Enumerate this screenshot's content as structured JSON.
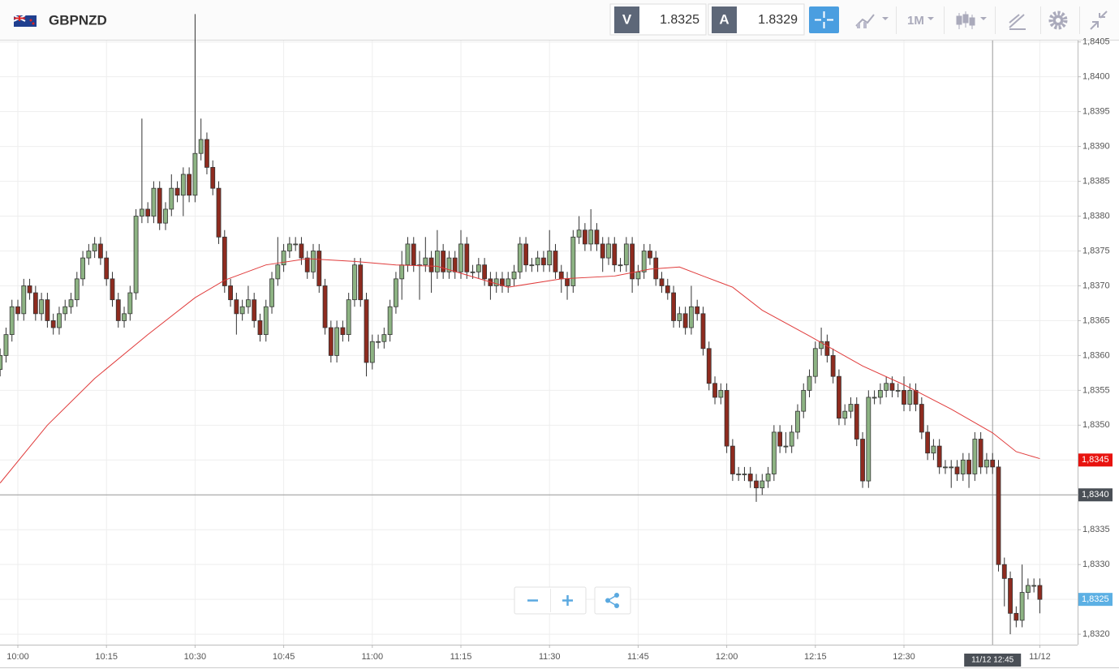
{
  "toolbar": {
    "symbol": "GBPNZD",
    "sell_label": "V",
    "sell_price": 1.8325,
    "buy_label": "A",
    "buy_price": 1.8329,
    "timeframe": "1M"
  },
  "chart_data": {
    "type": "candlestick",
    "x": [
      "09:57",
      "09:58",
      "09:59",
      "10:00",
      "10:01",
      "10:02",
      "10:03",
      "10:04",
      "10:05",
      "10:06",
      "10:07",
      "10:08",
      "10:09",
      "10:10",
      "10:11",
      "10:12",
      "10:13",
      "10:14",
      "10:15",
      "10:16",
      "10:17",
      "10:18",
      "10:19",
      "10:20",
      "10:21",
      "10:22",
      "10:23",
      "10:24",
      "10:25",
      "10:26",
      "10:27",
      "10:28",
      "10:29",
      "10:30",
      "10:31",
      "10:32",
      "10:33",
      "10:34",
      "10:35",
      "10:36",
      "10:37",
      "10:38",
      "10:39",
      "10:40",
      "10:41",
      "10:42",
      "10:43",
      "10:44",
      "10:45",
      "10:46",
      "10:47",
      "10:48",
      "10:49",
      "10:50",
      "10:51",
      "10:52",
      "10:53",
      "10:54",
      "10:55",
      "10:56",
      "10:57",
      "10:58",
      "10:59",
      "11:00",
      "11:01",
      "11:02",
      "11:03",
      "11:04",
      "11:05",
      "11:06",
      "11:07",
      "11:08",
      "11:09",
      "11:10",
      "11:11",
      "11:12",
      "11:13",
      "11:14",
      "11:15",
      "11:16",
      "11:17",
      "11:18",
      "11:19",
      "11:20",
      "11:21",
      "11:22",
      "11:23",
      "11:24",
      "11:25",
      "11:26",
      "11:27",
      "11:28",
      "11:29",
      "11:30",
      "11:31",
      "11:32",
      "11:33",
      "11:34",
      "11:35",
      "11:36",
      "11:37",
      "11:38",
      "11:39",
      "11:40",
      "11:41",
      "11:42",
      "11:43",
      "11:44",
      "11:45",
      "11:46",
      "11:47",
      "11:48",
      "11:49",
      "11:50",
      "11:51",
      "11:52",
      "11:53",
      "11:54",
      "11:55",
      "11:56",
      "11:57",
      "11:58",
      "11:59",
      "12:00",
      "12:01",
      "12:02",
      "12:03",
      "12:04",
      "12:05",
      "12:06",
      "12:07",
      "12:08",
      "12:09",
      "12:10",
      "12:11",
      "12:12",
      "12:13",
      "12:14",
      "12:15",
      "12:16",
      "12:17",
      "12:18",
      "12:19",
      "12:20",
      "12:21",
      "12:22",
      "12:23",
      "12:24",
      "12:25",
      "12:26",
      "12:27",
      "12:28",
      "12:29",
      "12:30",
      "12:31",
      "12:32",
      "12:33",
      "12:34",
      "12:35",
      "12:36",
      "12:37",
      "12:38",
      "12:39",
      "12:40",
      "12:41",
      "12:42",
      "12:43",
      "12:44",
      "12:45",
      "12:46",
      "12:47",
      "12:48",
      "12:49",
      "12:50",
      "12:51",
      "12:52",
      "12:53"
    ],
    "open": [
      1.8358,
      1.836,
      1.8363,
      1.8367,
      1.8366,
      1.837,
      1.8369,
      1.8366,
      1.8368,
      1.8365,
      1.8364,
      1.8366,
      1.8367,
      1.8368,
      1.8371,
      1.8374,
      1.8375,
      1.8376,
      1.8374,
      1.8371,
      1.8368,
      1.8365,
      1.8366,
      1.8369,
      1.838,
      1.8381,
      1.838,
      1.8384,
      1.8379,
      1.8381,
      1.8384,
      1.8383,
      1.8386,
      1.8383,
      1.8389,
      1.8391,
      1.8387,
      1.8384,
      1.8377,
      1.837,
      1.8368,
      1.8366,
      1.8367,
      1.8368,
      1.8365,
      1.8363,
      1.8367,
      1.8371,
      1.8373,
      1.8375,
      1.8376,
      1.8376,
      1.8374,
      1.8372,
      1.8375,
      1.837,
      1.8364,
      1.836,
      1.8364,
      1.8363,
      1.8368,
      1.8373,
      1.8368,
      1.8359,
      1.8362,
      1.8362,
      1.8363,
      1.8367,
      1.8371,
      1.8373,
      1.8376,
      1.8373,
      1.8373,
      1.8374,
      1.8372,
      1.8375,
      1.8372,
      1.8374,
      1.8372,
      1.8376,
      1.8372,
      1.8372,
      1.8373,
      1.8371,
      1.837,
      1.8371,
      1.837,
      1.8371,
      1.8372,
      1.8376,
      1.8373,
      1.8373,
      1.8374,
      1.8373,
      1.8375,
      1.8372,
      1.8371,
      1.837,
      1.8377,
      1.8378,
      1.8376,
      1.8378,
      1.8376,
      1.8374,
      1.8376,
      1.8373,
      1.8373,
      1.8376,
      1.8371,
      1.8372,
      1.8375,
      1.8374,
      1.8371,
      1.837,
      1.8369,
      1.8365,
      1.8366,
      1.8364,
      1.8367,
      1.8366,
      1.8361,
      1.8356,
      1.8354,
      1.8355,
      1.8347,
      1.8343,
      1.8343,
      1.8343,
      1.8342,
      1.8341,
      1.8342,
      1.8343,
      1.8349,
      1.8347,
      1.8347,
      1.8349,
      1.8352,
      1.8355,
      1.8357,
      1.8361,
      1.8362,
      1.836,
      1.8357,
      1.8351,
      1.8352,
      1.8353,
      1.8348,
      1.8342,
      1.8354,
      1.8354,
      1.8355,
      1.8356,
      1.8355,
      1.8355,
      1.8353,
      1.8355,
      1.8353,
      1.8349,
      1.8346,
      1.8347,
      1.8344,
      1.8344,
      1.8344,
      1.8343,
      1.8345,
      1.8343,
      1.8348,
      1.8344,
      1.8345,
      1.8344,
      1.833,
      1.8328,
      1.8323,
      1.8322,
      1.8326,
      1.8327,
      1.8327
    ],
    "high": [
      1.8361,
      1.8364,
      1.8368,
      1.8368,
      1.8371,
      1.8371,
      1.837,
      1.8369,
      1.8369,
      1.8366,
      1.8367,
      1.8368,
      1.8369,
      1.8372,
      1.8375,
      1.8376,
      1.8377,
      1.8377,
      1.8375,
      1.8372,
      1.8369,
      1.8367,
      1.837,
      1.8381,
      1.8394,
      1.8382,
      1.8385,
      1.8385,
      1.8382,
      1.8386,
      1.8385,
      1.8387,
      1.8387,
      1.8409,
      1.8394,
      1.8392,
      1.8388,
      1.8385,
      1.8378,
      1.8371,
      1.8369,
      1.8368,
      1.837,
      1.8369,
      1.8366,
      1.8368,
      1.8372,
      1.8377,
      1.8376,
      1.8377,
      1.8377,
      1.8377,
      1.8375,
      1.8376,
      1.8376,
      1.8371,
      1.8365,
      1.8365,
      1.8365,
      1.8369,
      1.8374,
      1.8374,
      1.8369,
      1.8363,
      1.8363,
      1.8364,
      1.8368,
      1.8372,
      1.8375,
      1.8377,
      1.8377,
      1.8375,
      1.8377,
      1.8375,
      1.8378,
      1.8376,
      1.8375,
      1.8375,
      1.8378,
      1.8377,
      1.8373,
      1.8374,
      1.8374,
      1.8372,
      1.8372,
      1.8372,
      1.8372,
      1.8373,
      1.8377,
      1.8377,
      1.8374,
      1.8375,
      1.8375,
      1.8378,
      1.8376,
      1.8373,
      1.8372,
      1.8378,
      1.838,
      1.8379,
      1.8381,
      1.8379,
      1.8377,
      1.8377,
      1.8377,
      1.8374,
      1.8377,
      1.8377,
      1.8373,
      1.8376,
      1.8376,
      1.8375,
      1.8372,
      1.8371,
      1.837,
      1.8367,
      1.8367,
      1.837,
      1.8368,
      1.8367,
      1.8362,
      1.8357,
      1.8356,
      1.8356,
      1.8348,
      1.8344,
      1.8344,
      1.8344,
      1.8343,
      1.8343,
      1.8344,
      1.835,
      1.835,
      1.8349,
      1.835,
      1.8353,
      1.8356,
      1.8358,
      1.8362,
      1.8364,
      1.8363,
      1.8361,
      1.8358,
      1.8353,
      1.8354,
      1.8354,
      1.8349,
      1.8355,
      1.8355,
      1.8356,
      1.8357,
      1.8357,
      1.8356,
      1.8357,
      1.8356,
      1.8356,
      1.8354,
      1.835,
      1.8348,
      1.8348,
      1.8345,
      1.8345,
      1.8345,
      1.8346,
      1.8346,
      1.8349,
      1.8349,
      1.8346,
      1.8346,
      1.8345,
      1.8331,
      1.8329,
      1.8324,
      1.833,
      1.8328,
      1.8328,
      1.8328
    ],
    "low": [
      1.8357,
      1.8359,
      1.8362,
      1.8365,
      1.8365,
      1.8368,
      1.8365,
      1.8365,
      1.8364,
      1.8363,
      1.8363,
      1.8365,
      1.8366,
      1.8367,
      1.837,
      1.8373,
      1.8374,
      1.8373,
      1.837,
      1.8367,
      1.8364,
      1.8364,
      1.8365,
      1.8368,
      1.8379,
      1.8379,
      1.8379,
      1.8378,
      1.8378,
      1.838,
      1.8382,
      1.838,
      1.8382,
      1.8382,
      1.8388,
      1.8386,
      1.8383,
      1.8376,
      1.8369,
      1.8367,
      1.8363,
      1.8365,
      1.8366,
      1.8364,
      1.8362,
      1.8362,
      1.8366,
      1.837,
      1.8372,
      1.8374,
      1.8375,
      1.8373,
      1.8371,
      1.8371,
      1.8369,
      1.8363,
      1.8359,
      1.8359,
      1.8362,
      1.8362,
      1.8367,
      1.8367,
      1.8357,
      1.8358,
      1.8361,
      1.8361,
      1.8362,
      1.8366,
      1.8368,
      1.8372,
      1.8372,
      1.8368,
      1.8372,
      1.8369,
      1.8371,
      1.8371,
      1.8371,
      1.8371,
      1.8371,
      1.8371,
      1.8371,
      1.8371,
      1.837,
      1.8368,
      1.8369,
      1.8369,
      1.8369,
      1.837,
      1.8371,
      1.8372,
      1.8372,
      1.8372,
      1.8372,
      1.8372,
      1.8371,
      1.8369,
      1.8368,
      1.8369,
      1.8376,
      1.8375,
      1.8375,
      1.8375,
      1.8372,
      1.8373,
      1.8372,
      1.8372,
      1.8372,
      1.8369,
      1.837,
      1.8371,
      1.8373,
      1.837,
      1.8369,
      1.8368,
      1.8364,
      1.8364,
      1.8363,
      1.8363,
      1.8365,
      1.836,
      1.8355,
      1.8353,
      1.8353,
      1.8346,
      1.8342,
      1.8342,
      1.8342,
      1.8341,
      1.8339,
      1.834,
      1.8341,
      1.8342,
      1.8346,
      1.8346,
      1.8346,
      1.8348,
      1.8351,
      1.8354,
      1.8356,
      1.836,
      1.8359,
      1.8356,
      1.835,
      1.835,
      1.8351,
      1.8347,
      1.8341,
      1.8341,
      1.8353,
      1.8353,
      1.8354,
      1.8354,
      1.8354,
      1.8352,
      1.8352,
      1.8352,
      1.8348,
      1.8345,
      1.8345,
      1.8343,
      1.8343,
      1.8341,
      1.8342,
      1.8342,
      1.8341,
      1.8342,
      1.8343,
      1.8343,
      1.8343,
      1.8329,
      1.8324,
      1.832,
      1.8321,
      1.8321,
      1.8325,
      1.8326,
      1.8323
    ],
    "close": [
      1.836,
      1.8363,
      1.8367,
      1.8366,
      1.837,
      1.8369,
      1.8366,
      1.8368,
      1.8365,
      1.8364,
      1.8366,
      1.8367,
      1.8368,
      1.8371,
      1.8374,
      1.8375,
      1.8376,
      1.8374,
      1.8371,
      1.8368,
      1.8365,
      1.8366,
      1.8369,
      1.838,
      1.8381,
      1.838,
      1.8384,
      1.8379,
      1.8381,
      1.8384,
      1.8383,
      1.8386,
      1.8383,
      1.8389,
      1.8391,
      1.8387,
      1.8384,
      1.8377,
      1.837,
      1.8368,
      1.8366,
      1.8367,
      1.8368,
      1.8365,
      1.8363,
      1.8367,
      1.8371,
      1.8373,
      1.8375,
      1.8376,
      1.8376,
      1.8374,
      1.8372,
      1.8375,
      1.837,
      1.8364,
      1.836,
      1.8364,
      1.8363,
      1.8368,
      1.8373,
      1.8368,
      1.8359,
      1.8362,
      1.8362,
      1.8363,
      1.8367,
      1.8371,
      1.8373,
      1.8376,
      1.8373,
      1.8373,
      1.8374,
      1.8372,
      1.8375,
      1.8372,
      1.8374,
      1.8372,
      1.8376,
      1.8372,
      1.8372,
      1.8373,
      1.8371,
      1.837,
      1.8371,
      1.837,
      1.8371,
      1.8372,
      1.8376,
      1.8373,
      1.8373,
      1.8374,
      1.8373,
      1.8375,
      1.8372,
      1.8371,
      1.837,
      1.8377,
      1.8378,
      1.8376,
      1.8378,
      1.8376,
      1.8374,
      1.8376,
      1.8373,
      1.8373,
      1.8376,
      1.8371,
      1.8372,
      1.8375,
      1.8374,
      1.8371,
      1.837,
      1.8369,
      1.8365,
      1.8366,
      1.8364,
      1.8367,
      1.8366,
      1.8361,
      1.8356,
      1.8354,
      1.8355,
      1.8347,
      1.8343,
      1.8343,
      1.8343,
      1.8342,
      1.8341,
      1.8342,
      1.8343,
      1.8349,
      1.8347,
      1.8347,
      1.8349,
      1.8352,
      1.8355,
      1.8357,
      1.8361,
      1.8362,
      1.836,
      1.8357,
      1.8351,
      1.8352,
      1.8353,
      1.8348,
      1.8342,
      1.8354,
      1.8354,
      1.8355,
      1.8356,
      1.8355,
      1.8355,
      1.8353,
      1.8355,
      1.8353,
      1.8349,
      1.8346,
      1.8347,
      1.8344,
      1.8344,
      1.8344,
      1.8343,
      1.8345,
      1.8343,
      1.8348,
      1.8344,
      1.8345,
      1.8344,
      1.833,
      1.8328,
      1.8323,
      1.8322,
      1.8326,
      1.8327,
      1.8327,
      1.8325
    ],
    "up_color": "#8db383",
    "down_color": "#8e2b1f",
    "ma": {
      "color": "#e03b3b",
      "x": [
        "09:57",
        "10:05",
        "10:13",
        "10:22",
        "10:30",
        "10:35",
        "10:42",
        "10:49",
        "10:57",
        "11:04",
        "11:11",
        "11:19",
        "11:23",
        "11:32",
        "11:41",
        "11:47",
        "11:52",
        "11:56",
        "12:01",
        "12:06",
        "12:14",
        "12:23",
        "12:30",
        "12:38",
        "12:45",
        "12:49",
        "12:53"
      ],
      "values": [
        1.83417,
        1.835,
        1.83567,
        1.8363,
        1.83683,
        1.83708,
        1.8373,
        1.83739,
        1.83735,
        1.8373,
        1.83728,
        1.83708,
        1.83698,
        1.8371,
        1.83714,
        1.83724,
        1.83727,
        1.83714,
        1.83698,
        1.83665,
        1.83628,
        1.83585,
        1.83558,
        1.83523,
        1.83489,
        1.83462,
        1.83452
      ]
    },
    "ylim": [
      1.83185,
      1.84052
    ],
    "yticks": [
      {
        "value": 1.832,
        "label": "1,8320"
      },
      {
        "value": 1.8325,
        "label": "1,8325"
      },
      {
        "value": 1.833,
        "label": "1,8330"
      },
      {
        "value": 1.8335,
        "label": "1,8335"
      },
      {
        "value": 1.834,
        "label": "1,8340"
      },
      {
        "value": 1.8345,
        "label": "1,8345"
      },
      {
        "value": 1.835,
        "label": "1,8350"
      },
      {
        "value": 1.8355,
        "label": "1,8355"
      },
      {
        "value": 1.836,
        "label": "1,8360"
      },
      {
        "value": 1.8365,
        "label": "1,8365"
      },
      {
        "value": 1.837,
        "label": "1,8370"
      },
      {
        "value": 1.8375,
        "label": "1,8375"
      },
      {
        "value": 1.838,
        "label": "1,8380"
      },
      {
        "value": 1.8385,
        "label": "1,8385"
      },
      {
        "value": 1.839,
        "label": "1,8390"
      },
      {
        "value": 1.8395,
        "label": "1,8395"
      },
      {
        "value": 1.84,
        "label": "1,8400"
      },
      {
        "value": 1.8405,
        "label": "1,8405"
      }
    ],
    "xticks": [
      "10:00",
      "10:15",
      "10:30",
      "10:45",
      "11:00",
      "11:15",
      "11:30",
      "11:45",
      "12:00",
      "12:15",
      "12:30",
      {
        "value": "12:53",
        "label": "11/12"
      }
    ],
    "grid": true,
    "price_labels": [
      {
        "value": 1.8345,
        "label": "1,8345",
        "color": "#e8130f"
      },
      {
        "value": 1.8325,
        "label": "1,8325",
        "color": "#5cb0e4"
      }
    ],
    "crosshair": {
      "y": {
        "value": 1.834,
        "label": "1,8340"
      },
      "x": {
        "value": "12:45",
        "label": "11/12 12:45"
      },
      "color": "#4a4f56"
    }
  }
}
